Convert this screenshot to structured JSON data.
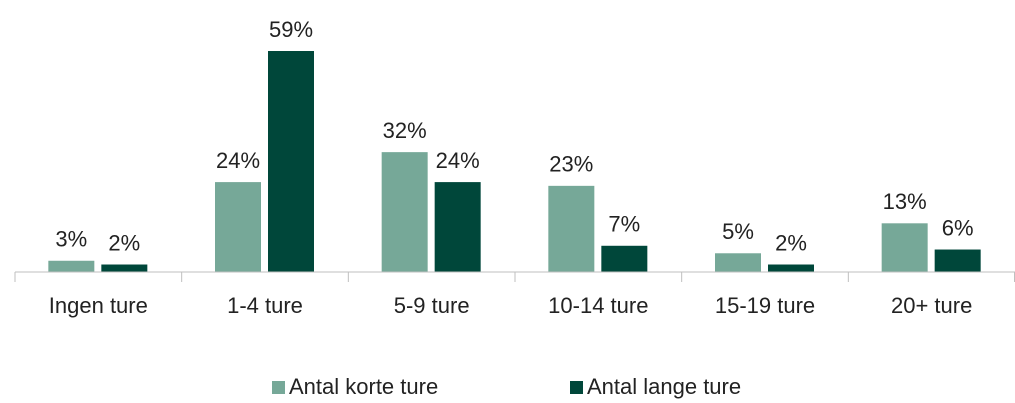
{
  "chart_data": {
    "type": "bar",
    "categories": [
      "Ingen ture",
      "1-4 ture",
      "5-9 ture",
      "10-14 ture",
      "15-19 ture",
      "20+ ture"
    ],
    "series": [
      {
        "name": "Antal korte ture",
        "color": "#76a898",
        "values": [
          3,
          24,
          32,
          23,
          5,
          13
        ],
        "value_labels": [
          "3%",
          "24%",
          "32%",
          "23%",
          "5%",
          "13%"
        ]
      },
      {
        "name": "Antal lange ture",
        "color": "#00473a",
        "values": [
          2,
          59,
          24,
          7,
          2,
          6
        ],
        "value_labels": [
          "2%",
          "59%",
          "24%",
          "7%",
          "2%",
          "6%"
        ]
      }
    ],
    "legend": "bottom"
  }
}
